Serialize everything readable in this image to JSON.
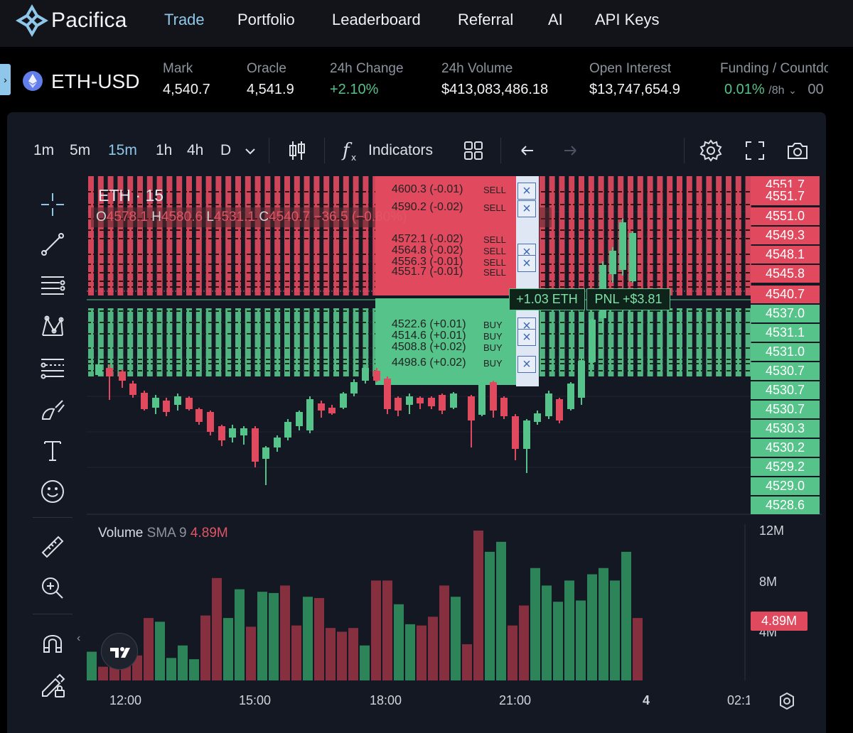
{
  "nav": {
    "brand": "Pacifica",
    "links": [
      "Trade",
      "Portfolio",
      "Leaderboard",
      "Referral",
      "AI",
      "API Keys"
    ],
    "active": "Trade"
  },
  "ticker": {
    "pair": "ETH-USD",
    "mark_label": "Mark",
    "mark": "4,540.7",
    "oracle_label": "Oracle",
    "oracle": "4,541.9",
    "change_label": "24h Change",
    "change": "+2.10%",
    "volume_label": "24h Volume",
    "volume": "$413,083,486.18",
    "oi_label": "Open Interest",
    "oi": "$13,747,654.9",
    "funding_label": "Funding / Countdown",
    "funding": "0.01%",
    "funding_period": "/8h",
    "countdown": "00"
  },
  "toolbar": {
    "intervals": [
      "1m",
      "5m",
      "15m",
      "1h",
      "4h",
      "D"
    ],
    "active_interval": "15m",
    "indicators": "Indicators"
  },
  "chart": {
    "title": "ETH · 15",
    "ohlc": {
      "o": "4578.1",
      "h": "4580.6",
      "l": "4531.1",
      "c": "4540.7",
      "chg": "−36.5 (−0.80%)"
    },
    "orders": [
      {
        "label": "4600.3 (-0.01)",
        "side": "SELL"
      },
      {
        "label": "4590.2 (-0.02)",
        "side": "SELL"
      },
      {
        "label": "4572.1 (-0.02)",
        "side": "SELL"
      },
      {
        "label": "4564.8 (-0.02)",
        "side": "SELL"
      },
      {
        "label": "4556.3 (-0.01)",
        "side": "SELL"
      },
      {
        "label": "4551.7 (-0.01)",
        "side": "SELL"
      },
      {
        "label": "4522.6 (+0.01)",
        "side": "BUY"
      },
      {
        "label": "4514.6 (+0.01)",
        "side": "BUY"
      },
      {
        "label": "4508.8 (+0.02)",
        "side": "BUY"
      },
      {
        "label": "4498.6 (+0.02)",
        "side": "BUY"
      }
    ],
    "position_qty": "+1.03 ETH",
    "position_pnl": "PNL +$3.81",
    "sell_price_labels": [
      "4551.7",
      "4551.7",
      "4551.0",
      "4549.3",
      "4548.1",
      "4545.8",
      "4540.7"
    ],
    "buy_price_labels": [
      "4537.0",
      "4531.1",
      "4531.0",
      "4530.7",
      "4530.7",
      "4530.7",
      "4530.3",
      "4530.2",
      "4529.2",
      "4529.0",
      "4528.6"
    ],
    "colors": {
      "up": "#56c38a",
      "down": "#e14a5e",
      "accent": "#8fc7ea"
    }
  },
  "volume": {
    "name": "Volume",
    "ma": "SMA 9",
    "value": "4.89M",
    "axis": [
      "12M",
      "8M",
      "4M"
    ]
  },
  "xaxis": [
    "12:00",
    "15:00",
    "18:00",
    "21:00",
    "4",
    "02:1"
  ]
}
